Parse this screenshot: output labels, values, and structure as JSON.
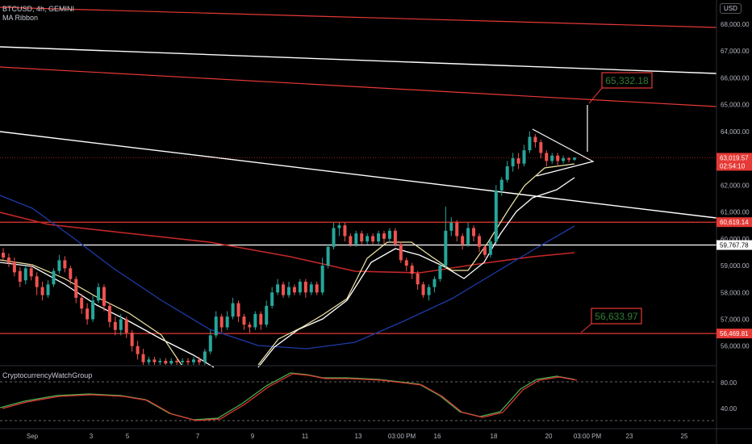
{
  "header": {
    "symbol": "BTCUSD, 4h, GEMINI",
    "indicator": "MA Ribbon",
    "oscillator": "CryptocurrencyWatchGroup",
    "currency": "USD"
  },
  "colors": {
    "background": "#000000",
    "up": "#26a69a",
    "down": "#ef5350",
    "level_red": "#e53935",
    "level_white": "#ffffff",
    "ma_fast": "#f3e8a8",
    "ma_mid": "#ffffff",
    "ma_slow_blue": "#1e3aa8",
    "ma_slowest_red": "#c62828",
    "osc_green": "#4caf50",
    "osc_red": "#e53935",
    "label_box": "#e53935",
    "label_text": "#2e7d32"
  },
  "chart_data": {
    "type": "candlestick",
    "x_ticks": [
      "Sep",
      "3",
      "5",
      "7",
      "9",
      "11",
      "13",
      "03:00 PM",
      "16",
      "18",
      "20",
      "03:00 PM",
      "23",
      "25"
    ],
    "y_ticks": [
      "68,000.00",
      "67,000.00",
      "66,000.00",
      "65,000.00",
      "64,000.00",
      "62,000.00",
      "61,000.00",
      "60,000.00",
      "59,000.00",
      "58,000.00",
      "57,000.00",
      "56,000.00"
    ],
    "ylim": [
      55300,
      68900
    ],
    "price_labels": [
      {
        "text": "63,019.57",
        "sub": "02:54:10",
        "value": 63019.57,
        "style": "red"
      },
      {
        "text": "60,619.14",
        "value": 60619.14,
        "style": "red"
      },
      {
        "text": "59,767.78",
        "value": 59767.78,
        "style": "white"
      },
      {
        "text": "56,469.81",
        "value": 56469.81,
        "style": "red"
      }
    ],
    "annotations": [
      {
        "text": "65,332.18",
        "value": 65332.18
      },
      {
        "text": "56,633.97",
        "value": 56633.97
      }
    ],
    "horizontal_levels": [
      {
        "value": 60619.14,
        "color": "red"
      },
      {
        "value": 59767.78,
        "color": "white"
      },
      {
        "value": 56469.81,
        "color": "red"
      }
    ],
    "candles_approx": [
      [
        59480,
        59300,
        59650,
        59200
      ],
      [
        59300,
        59100,
        59450,
        58950
      ],
      [
        59150,
        58750,
        59300,
        58600
      ],
      [
        58800,
        58400,
        58950,
        58200
      ],
      [
        58450,
        58900,
        59000,
        58300
      ],
      [
        58900,
        58600,
        59050,
        58450
      ],
      [
        58600,
        58200,
        58750,
        57900
      ],
      [
        58200,
        57900,
        58400,
        57700
      ],
      [
        57900,
        58300,
        58450,
        57800
      ],
      [
        58300,
        58800,
        58900,
        58200
      ],
      [
        58800,
        59200,
        59400,
        58700
      ],
      [
        59200,
        58900,
        59350,
        58750
      ],
      [
        58900,
        58500,
        59000,
        58300
      ],
      [
        58500,
        57800,
        58600,
        57600
      ],
      [
        57800,
        57400,
        57950,
        57200
      ],
      [
        57400,
        57000,
        57600,
        56800
      ],
      [
        57000,
        57700,
        57900,
        56900
      ],
      [
        57700,
        58200,
        58350,
        57600
      ],
      [
        58200,
        57500,
        58300,
        57300
      ],
      [
        57500,
        56900,
        57600,
        56700
      ],
      [
        56900,
        56600,
        57100,
        56400
      ],
      [
        56600,
        57000,
        57200,
        56400
      ],
      [
        57000,
        56500,
        57100,
        56300
      ],
      [
        56500,
        56000,
        56600,
        55800
      ],
      [
        56000,
        55700,
        56200,
        55500
      ],
      [
        55700,
        55400,
        55900,
        55300
      ],
      [
        55400,
        55500,
        55600,
        55300
      ],
      [
        55500,
        55400,
        55600,
        55300
      ],
      [
        55400,
        55450,
        55550,
        55300
      ],
      [
        55450,
        55350,
        55550,
        55300
      ],
      [
        55350,
        55450,
        55550,
        55300
      ],
      [
        55450,
        55400,
        55550,
        55300
      ],
      [
        55400,
        55450,
        55550,
        55300
      ],
      [
        55450,
        55400,
        55550,
        55300
      ],
      [
        55400,
        55500,
        55600,
        55300
      ],
      [
        55500,
        55400,
        55600,
        55300
      ],
      [
        55400,
        55800,
        55900,
        55300
      ],
      [
        55800,
        56400,
        56600,
        55700
      ],
      [
        56400,
        57100,
        57300,
        56300
      ],
      [
        57100,
        56700,
        57200,
        56500
      ],
      [
        56700,
        57100,
        57300,
        56600
      ],
      [
        57100,
        57600,
        57800,
        57000
      ],
      [
        57600,
        57100,
        57700,
        56900
      ],
      [
        57100,
        56800,
        57200,
        56600
      ],
      [
        56800,
        56700,
        56900,
        56500
      ],
      [
        56700,
        57200,
        57300,
        56600
      ],
      [
        57200,
        56800,
        57300,
        56600
      ],
      [
        56800,
        57500,
        57700,
        56700
      ],
      [
        57500,
        58000,
        58200,
        57400
      ],
      [
        58000,
        58300,
        58500,
        57900
      ],
      [
        58300,
        57900,
        58400,
        57800
      ],
      [
        57900,
        58200,
        58400,
        57800
      ],
      [
        58200,
        58000,
        58300,
        57900
      ],
      [
        58000,
        58400,
        58500,
        57900
      ],
      [
        58400,
        58000,
        58500,
        57800
      ],
      [
        58000,
        58300,
        58400,
        57900
      ],
      [
        58300,
        58000,
        58400,
        57900
      ],
      [
        58000,
        59000,
        59300,
        57900
      ],
      [
        59000,
        59700,
        59800,
        58900
      ],
      [
        59700,
        60400,
        60600,
        59600
      ],
      [
        60400,
        60500,
        60600,
        60100
      ],
      [
        60500,
        60100,
        60600,
        59900
      ],
      [
        60100,
        59800,
        60200,
        59700
      ],
      [
        59800,
        60200,
        60300,
        59700
      ],
      [
        60200,
        59900,
        60300,
        59800
      ],
      [
        59900,
        60100,
        60200,
        59800
      ],
      [
        60100,
        59900,
        60200,
        59800
      ],
      [
        59900,
        60200,
        60300,
        59800
      ],
      [
        60200,
        60000,
        60300,
        59800
      ],
      [
        60000,
        60300,
        60400,
        59900
      ],
      [
        60300,
        59800,
        60400,
        59700
      ],
      [
        59800,
        59200,
        59900,
        59100
      ],
      [
        59200,
        59000,
        59300,
        58800
      ],
      [
        59000,
        58700,
        59100,
        58500
      ],
      [
        58700,
        58300,
        58800,
        58100
      ],
      [
        58300,
        57900,
        58400,
        57800
      ],
      [
        57900,
        58200,
        58300,
        57700
      ],
      [
        58200,
        58500,
        58600,
        58000
      ],
      [
        58500,
        59000,
        59100,
        58400
      ],
      [
        59000,
        60300,
        61200,
        58900
      ],
      [
        60300,
        60600,
        60800,
        60100
      ],
      [
        60600,
        60100,
        60700,
        59900
      ],
      [
        60100,
        59800,
        60200,
        59600
      ],
      [
        59800,
        60400,
        60600,
        59700
      ],
      [
        60400,
        60100,
        60500,
        59900
      ],
      [
        60100,
        59700,
        60200,
        59500
      ],
      [
        59700,
        59400,
        59800,
        59300
      ],
      [
        59400,
        59900,
        60000,
        59300
      ],
      [
        59900,
        61800,
        62000,
        59800
      ],
      [
        61800,
        62200,
        62300,
        61600
      ],
      [
        62200,
        62700,
        62900,
        62100
      ],
      [
        62700,
        63000,
        63200,
        62500
      ],
      [
        63000,
        62800,
        63200,
        62600
      ],
      [
        62800,
        63300,
        63500,
        62700
      ],
      [
        63300,
        63800,
        64000,
        63200
      ],
      [
        63800,
        63600,
        63900,
        63400
      ],
      [
        63600,
        63200,
        63700,
        63000
      ],
      [
        63200,
        62900,
        63300,
        62700
      ],
      [
        62900,
        63100,
        63200,
        62800
      ],
      [
        63100,
        62900,
        63200,
        62700
      ],
      [
        62900,
        63000,
        63100,
        62800
      ],
      [
        63000,
        62950,
        63050,
        62850
      ],
      [
        62950,
        63019.57,
        63050,
        62900
      ]
    ]
  }
}
